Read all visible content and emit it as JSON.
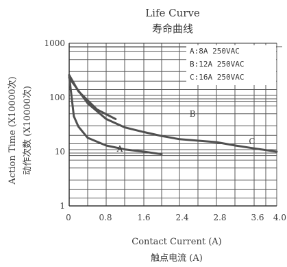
{
  "chart_data": {
    "type": "line",
    "title": "Life Curve",
    "subtitle": "寿命曲线",
    "xlabel": "Contact Current (A)",
    "xlabel_cn": "触点电流 (A)",
    "ylabel": "Action Time (X10000次)",
    "ylabel_cn": "动作次数 (X10000次)",
    "y_scale": "log",
    "ylim": [
      1,
      1000
    ],
    "y_ticks": [
      "1",
      "10",
      "100",
      "1000"
    ],
    "x_ticks": [
      "0",
      "0.8",
      "1.6",
      "2.4",
      "2.8",
      "3.6",
      "4.0"
    ],
    "x_tick_labels": [
      "0",
      "0.8",
      "1.6",
      "2.4",
      "2.8",
      "3.6",
      "4.0"
    ],
    "legend_position": "top-right",
    "legend": [
      "A:8A 250VAC",
      "B:12A 250VAC",
      "C:16A 250VAC"
    ],
    "grid": true,
    "series": [
      {
        "name": "A",
        "x": [
          0,
          0.1,
          0.2,
          0.4,
          0.8,
          1.2,
          1.6,
          2.0
        ],
        "values": [
          250,
          45,
          29,
          18,
          13,
          11,
          10,
          9
        ]
      },
      {
        "name": "B",
        "x": [
          0,
          0.4,
          0.8,
          1.2,
          1.6,
          2.0,
          2.4,
          2.8,
          3.2,
          3.6,
          4.0
        ],
        "values": [
          230,
          78,
          40,
          28,
          23,
          19.5,
          17,
          15,
          13,
          11.5,
          10
        ]
      },
      {
        "name": "C",
        "x": [
          0,
          0.2,
          0.6,
          1.0
        ],
        "values": [
          260,
          130,
          60,
          40
        ]
      }
    ],
    "series_labels": [
      {
        "text": "A",
        "x": 1.5,
        "y": 12
      },
      {
        "text": "B",
        "x": 3.3,
        "y": 32
      },
      {
        "text": "C",
        "x": 5.3,
        "y": 15
      }
    ]
  }
}
